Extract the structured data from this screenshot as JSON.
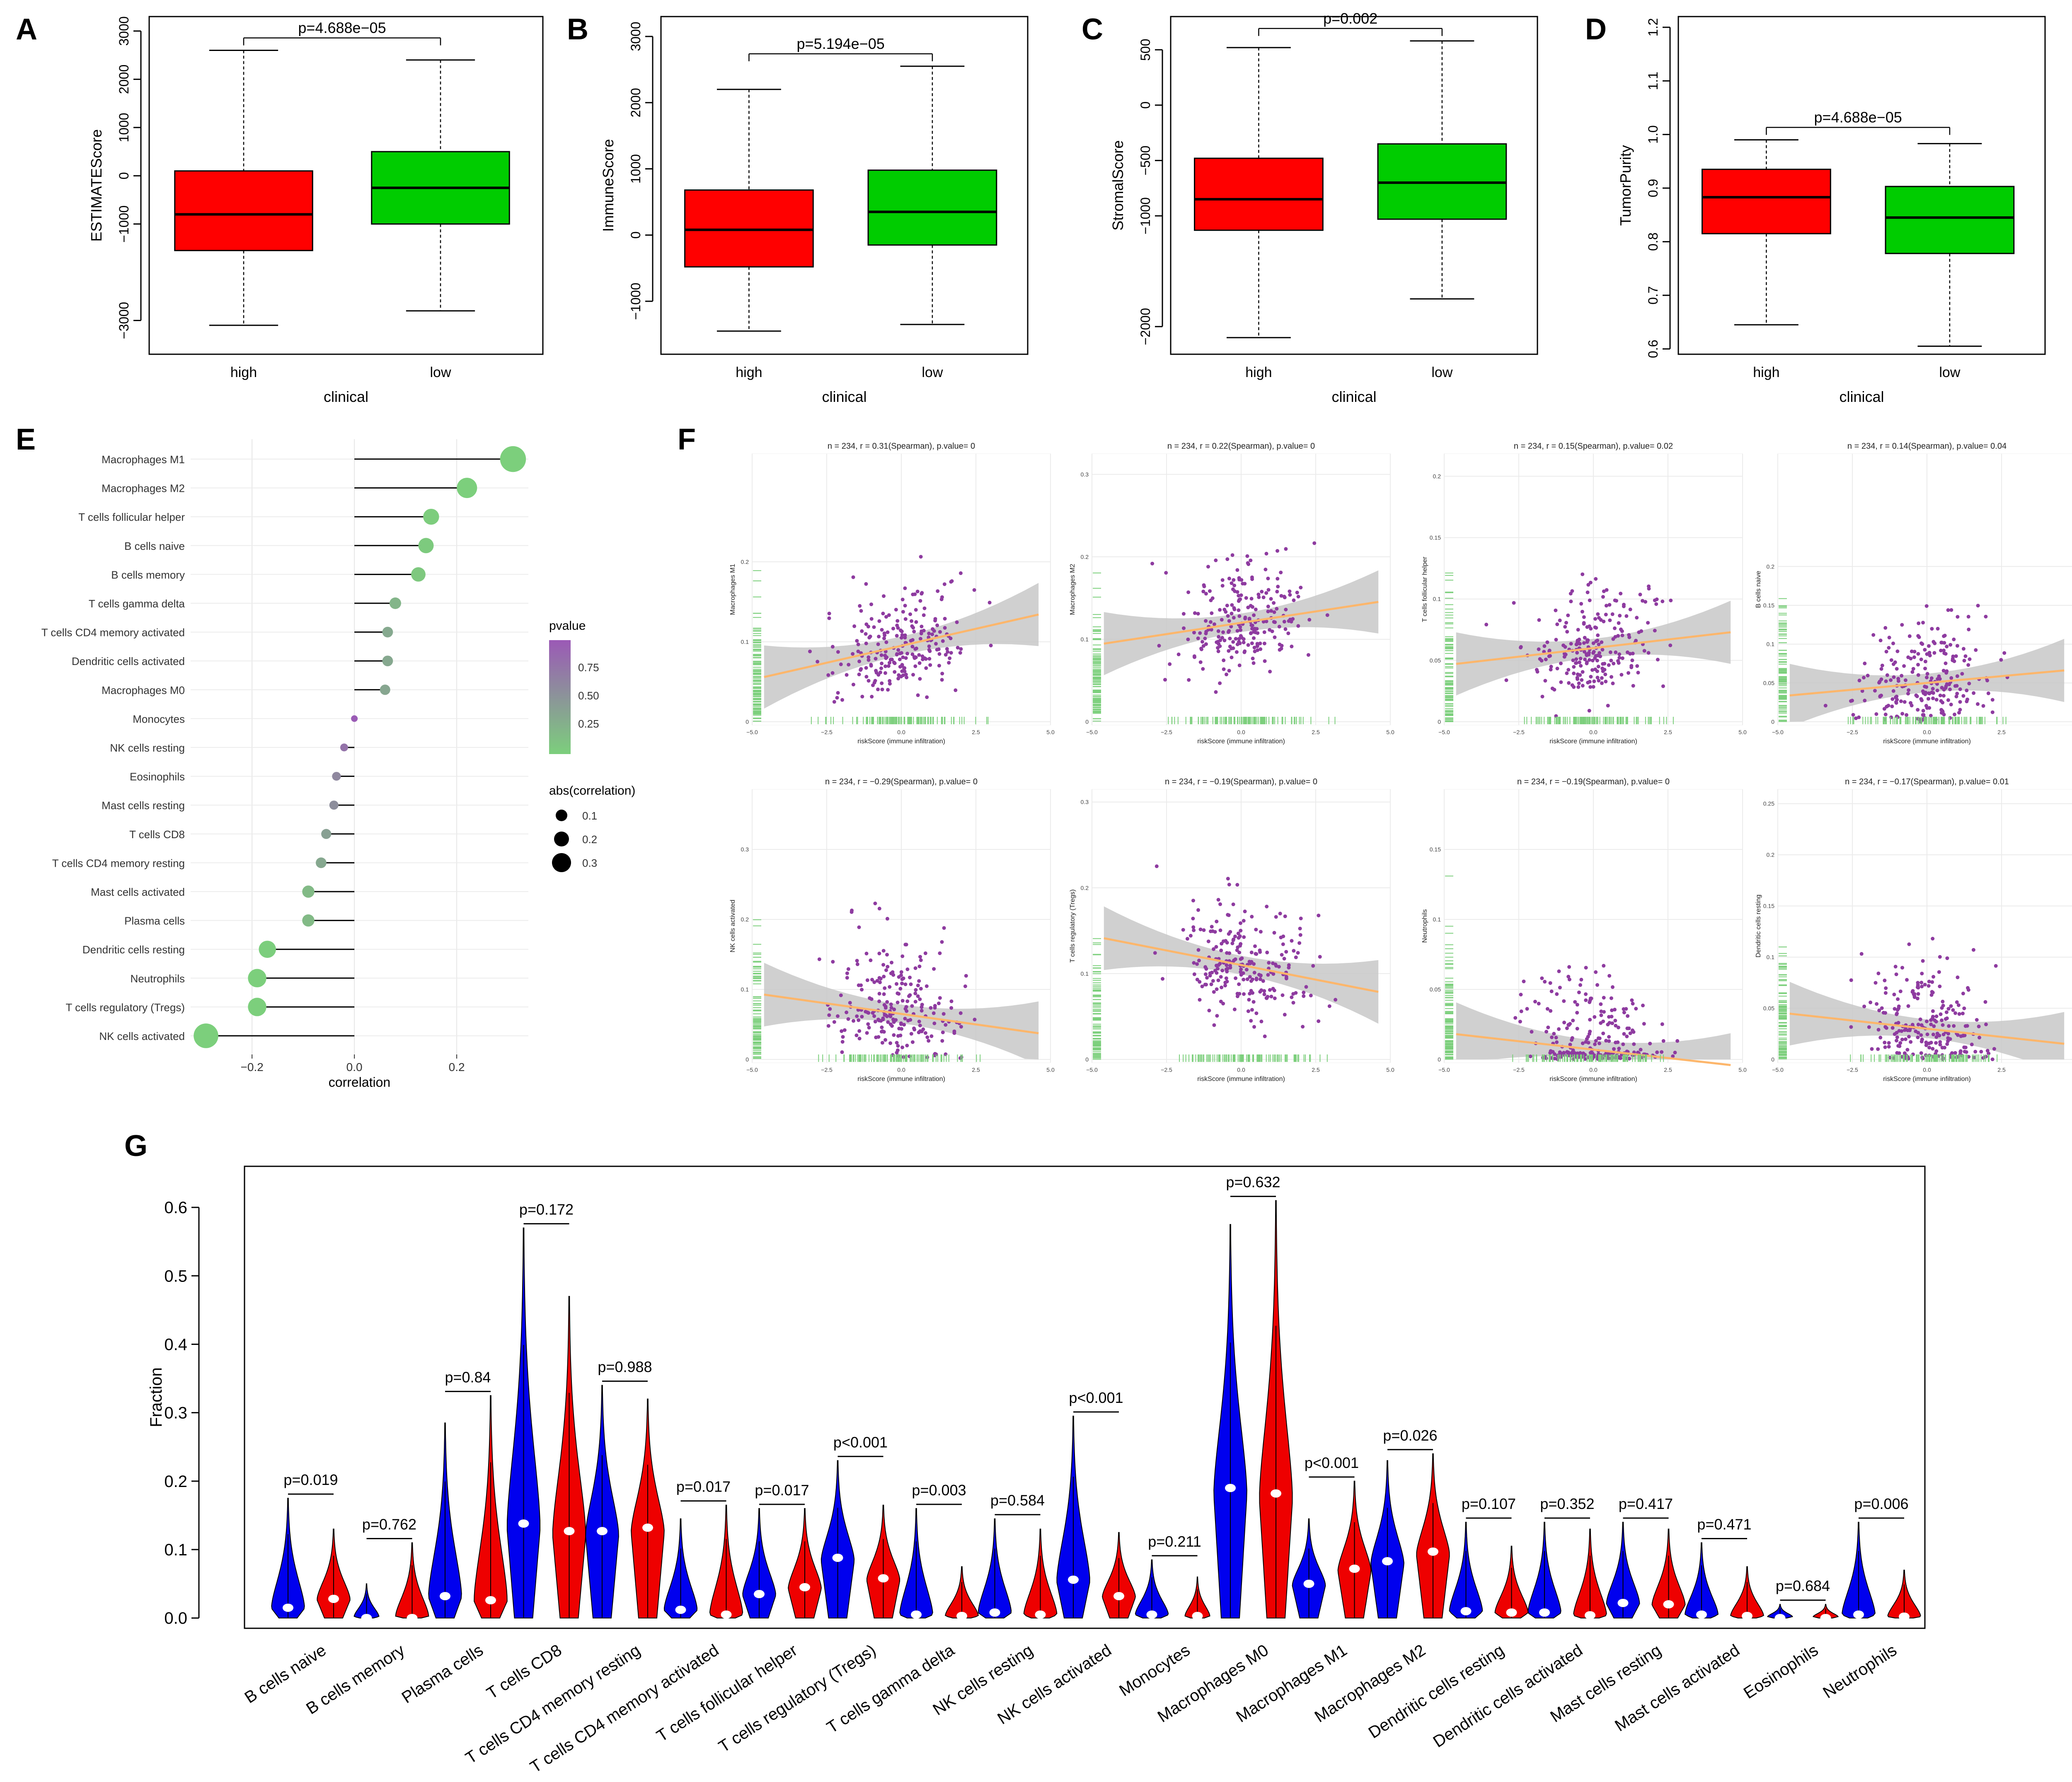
{
  "figure": {
    "panel_letters": [
      "A",
      "B",
      "C",
      "D",
      "E",
      "F",
      "G"
    ]
  },
  "colors": {
    "high": "#ff0000",
    "low": "#00cc00",
    "violin_blue": "#0000ee",
    "violin_red": "#ee0000",
    "lollipop_green": "#7ccf7c",
    "lollipop_purple": "#9b59b6",
    "scatter_point": "#8e3ba0",
    "rug": "#7ccf7c",
    "fit_line": "#fdb66b",
    "ci_band": "#c8c8c8"
  },
  "chart_data": [
    {
      "id": "A",
      "type": "boxplot",
      "xlabel": "clinical",
      "ylabel": "ESTIMATEScore",
      "ylim": [
        -3700,
        3300
      ],
      "yticks": [
        -3000,
        -1000,
        0,
        1000,
        2000,
        3000
      ],
      "ytick_labels": [
        "−3000",
        "−1000",
        "0",
        "1000",
        "2000",
        "3000"
      ],
      "pvalue_label": "p=4.688e−05",
      "groups": [
        {
          "name": "high",
          "whisker_low": -3100,
          "q1": -1550,
          "median": -800,
          "q3": 100,
          "whisker_high": 2600
        },
        {
          "name": "low",
          "whisker_low": -2800,
          "q1": -1000,
          "median": -250,
          "q3": 500,
          "whisker_high": 2400
        }
      ]
    },
    {
      "id": "B",
      "type": "boxplot",
      "xlabel": "clinical",
      "ylabel": "ImmuneScore",
      "ylim": [
        -1800,
        3300
      ],
      "yticks": [
        -1000,
        0,
        1000,
        2000,
        3000
      ],
      "ytick_labels": [
        "−1000",
        "0",
        "1000",
        "2000",
        "3000"
      ],
      "pvalue_label": "p=5.194e−05",
      "groups": [
        {
          "name": "high",
          "whisker_low": -1450,
          "q1": -480,
          "median": 80,
          "q3": 680,
          "whisker_high": 2200
        },
        {
          "name": "low",
          "whisker_low": -1350,
          "q1": -150,
          "median": 350,
          "q3": 980,
          "whisker_high": 2550
        }
      ]
    },
    {
      "id": "C",
      "type": "boxplot",
      "xlabel": "clinical",
      "ylabel": "StromalScore",
      "ylim": [
        -2250,
        800
      ],
      "yticks": [
        -2000,
        -1000,
        -500,
        0,
        500
      ],
      "ytick_labels": [
        "−2000",
        "−1000",
        "−500",
        "0",
        "500"
      ],
      "pvalue_label": "p=0.002",
      "groups": [
        {
          "name": "high",
          "whisker_low": -2100,
          "q1": -1130,
          "median": -850,
          "q3": -480,
          "whisker_high": 520
        },
        {
          "name": "low",
          "whisker_low": -1750,
          "q1": -1030,
          "median": -700,
          "q3": -350,
          "whisker_high": 580
        }
      ]
    },
    {
      "id": "D",
      "type": "boxplot",
      "xlabel": "clinical",
      "ylabel": "TumorPurity",
      "ylim": [
        0.59,
        1.22
      ],
      "yticks": [
        0.6,
        0.7,
        0.8,
        0.9,
        1.0,
        1.1,
        1.2
      ],
      "ytick_labels": [
        "0.6",
        "0.7",
        "0.8",
        "0.9",
        "1.0",
        "1.1",
        "1.2"
      ],
      "pvalue_label": "p=4.688e−05",
      "groups": [
        {
          "name": "high",
          "whisker_low": 0.645,
          "q1": 0.815,
          "median": 0.883,
          "q3": 0.935,
          "whisker_high": 0.99
        },
        {
          "name": "low",
          "whisker_low": 0.605,
          "q1": 0.778,
          "median": 0.845,
          "q3": 0.903,
          "whisker_high": 0.983
        }
      ]
    },
    {
      "id": "E",
      "type": "lollipop",
      "xlabel": "correlation",
      "xlim": [
        -0.32,
        0.34
      ],
      "xticks": [
        -0.2,
        0.0,
        0.2
      ],
      "xtick_labels": [
        "−0.2",
        "0.0",
        "0.2"
      ],
      "legend_pvalue_title": "pvalue",
      "legend_pvalue_ticks": [
        "0.75",
        "0.50",
        "0.25"
      ],
      "legend_size_title": "abs(correlation)",
      "legend_size_labels": [
        "0.1",
        "0.2",
        "0.3"
      ],
      "categories": [
        "Macrophages M1",
        "Macrophages M2",
        "T cells follicular helper",
        "B cells naive",
        "B cells memory",
        "T cells gamma delta",
        "T cells CD4 memory activated",
        "Dendritic cells activated",
        "Macrophages M0",
        "Monocytes",
        "NK cells resting",
        "Eosinophils",
        "Mast cells resting",
        "T cells CD8",
        "T cells CD4 memory resting",
        "Mast cells activated",
        "Plasma cells",
        "Dendritic cells resting",
        "Neutrophils",
        "T cells regulatory (Tregs)",
        "NK cells activated"
      ],
      "correlation": [
        0.31,
        0.22,
        0.15,
        0.14,
        0.125,
        0.08,
        0.065,
        0.065,
        0.06,
        0.0,
        -0.02,
        -0.035,
        -0.04,
        -0.055,
        -0.065,
        -0.09,
        -0.09,
        -0.17,
        -0.19,
        -0.19,
        -0.29
      ],
      "pvalue": [
        0.0,
        0.0,
        0.02,
        0.04,
        0.06,
        0.22,
        0.32,
        0.33,
        0.35,
        0.98,
        0.78,
        0.6,
        0.55,
        0.4,
        0.33,
        0.18,
        0.18,
        0.01,
        0.0,
        0.0,
        0.0
      ]
    },
    {
      "id": "F",
      "type": "scatter",
      "xlabel": "riskScore (immune infiltration)",
      "xlim": [
        -5,
        5
      ],
      "xticks": [
        -5.0,
        -2.5,
        0.0,
        2.5,
        5.0
      ],
      "xtick_labels": [
        "−5.0",
        "−2.5",
        "0.0",
        "2.5",
        "5.0"
      ],
      "subplots": [
        {
          "title": "n = 234, r = 0.31(Spearman), p.value= 0",
          "ylabel": "Macrophages M1",
          "yticks": [
            0.0,
            0.1,
            0.2
          ],
          "ymax": 0.33,
          "slope": 0.0085,
          "intercept": 0.095
        },
        {
          "title": "n = 234, r = 0.22(Spearman), p.value= 0",
          "ylabel": "Macrophages M2",
          "yticks": [
            0.0,
            0.1,
            0.2,
            0.3
          ],
          "ymax": 0.32,
          "slope": 0.0055,
          "intercept": 0.12
        },
        {
          "title": "n = 234, r = 0.15(Spearman), p.value= 0.02",
          "ylabel": "T cells follicular helper",
          "yticks": [
            0.0,
            0.05,
            0.1,
            0.15,
            0.2
          ],
          "ymax": 0.215,
          "slope": 0.0028,
          "intercept": 0.06
        },
        {
          "title": "n = 234, r = 0.14(Spearman), p.value= 0.04",
          "ylabel": "B cells naive",
          "yticks": [
            0.0,
            0.05,
            0.1,
            0.15,
            0.2
          ],
          "ymax": 0.34,
          "slope": 0.0035,
          "intercept": 0.05
        },
        {
          "title": "n = 234, r = −0.29(Spearman), p.value= 0",
          "ylabel": "NK cells activated",
          "yticks": [
            0.0,
            0.1,
            0.2,
            0.3
          ],
          "ymax": 0.38,
          "slope": -0.006,
          "intercept": 0.065
        },
        {
          "title": "n = 234, r = −0.19(Spearman), p.value= 0",
          "ylabel": "T cells regulatory (Tregs)",
          "yticks": [
            0.0,
            0.1,
            0.2,
            0.3
          ],
          "ymax": 0.31,
          "slope": -0.0068,
          "intercept": 0.11
        },
        {
          "title": "n = 234, r = −0.19(Spearman), p.value= 0",
          "ylabel": "Neutrophils",
          "yticks": [
            0.0,
            0.05,
            0.1,
            0.15
          ],
          "ymax": 0.19,
          "slope": -0.0024,
          "intercept": 0.007
        },
        {
          "title": "n = 234, r = −0.17(Spearman), p.value= 0.01",
          "ylabel": "Dendritic cells resting",
          "yticks": [
            0.0,
            0.05,
            0.1,
            0.15,
            0.2,
            0.25
          ],
          "ymax": 0.26,
          "slope": -0.0032,
          "intercept": 0.03
        }
      ]
    },
    {
      "id": "G",
      "type": "violin",
      "ylabel": "Fraction",
      "ylim": [
        -0.015,
        0.66
      ],
      "yticks": [
        0.0,
        0.1,
        0.2,
        0.3,
        0.4,
        0.5,
        0.6
      ],
      "ytick_labels": [
        "0.0",
        "0.1",
        "0.2",
        "0.3",
        "0.4",
        "0.5",
        "0.6"
      ],
      "categories": [
        "B cells naive",
        "B cells memory",
        "Plasma cells",
        "T cells CD8",
        "T cells CD4 memory resting",
        "T cells CD4 memory activated",
        "T cells follicular helper",
        "T cells regulatory (Tregs)",
        "T cells gamma delta",
        "NK cells resting",
        "NK cells activated",
        "Monocytes",
        "Macrophages M0",
        "Macrophages M1",
        "Macrophages M2",
        "Dendritic cells resting",
        "Dendritic cells activated",
        "Mast cells resting",
        "Mast cells activated",
        "Eosinophils",
        "Neutrophils"
      ],
      "pvalues": [
        "p=0.019",
        "p=0.762",
        "p=0.84",
        "p=0.172",
        "p=0.988",
        "p=0.017",
        "p=0.017",
        "p<0.001",
        "p=0.003",
        "p=0.584",
        "p<0.001",
        "p=0.211",
        "p=0.632",
        "p<0.001",
        "p=0.026",
        "p=0.107",
        "p=0.352",
        "p=0.417",
        "p=0.471",
        "p=0.684",
        "p=0.006"
      ],
      "series": [
        {
          "name": "blue",
          "max": [
            0.175,
            0.05,
            0.285,
            0.57,
            0.34,
            0.145,
            0.16,
            0.23,
            0.16,
            0.145,
            0.295,
            0.085,
            0.575,
            0.145,
            0.23,
            0.14,
            0.14,
            0.14,
            0.11,
            0.02,
            0.14
          ],
          "median": [
            0.015,
            0.0,
            0.032,
            0.138,
            0.127,
            0.012,
            0.035,
            0.088,
            0.005,
            0.008,
            0.056,
            0.005,
            0.19,
            0.05,
            0.083,
            0.01,
            0.008,
            0.022,
            0.005,
            0.0,
            0.005
          ]
        },
        {
          "name": "red",
          "max": [
            0.13,
            0.11,
            0.325,
            0.47,
            0.32,
            0.165,
            0.16,
            0.165,
            0.075,
            0.13,
            0.125,
            0.06,
            0.61,
            0.2,
            0.24,
            0.105,
            0.13,
            0.13,
            0.075,
            0.02,
            0.07
          ],
          "median": [
            0.028,
            0.0,
            0.026,
            0.127,
            0.132,
            0.005,
            0.045,
            0.058,
            0.003,
            0.005,
            0.032,
            0.003,
            0.182,
            0.072,
            0.097,
            0.008,
            0.004,
            0.02,
            0.003,
            0.0,
            0.002
          ]
        }
      ]
    }
  ]
}
